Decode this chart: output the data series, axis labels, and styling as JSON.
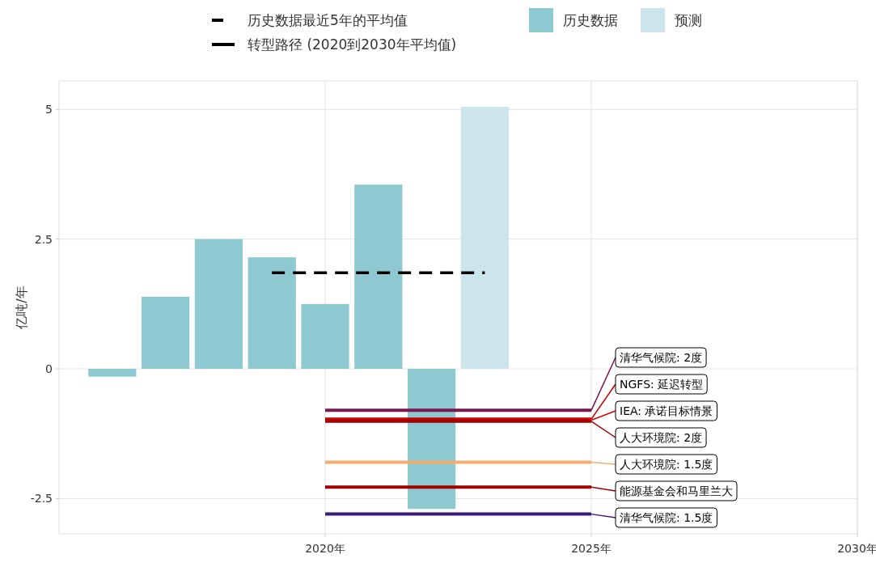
{
  "chart_data": {
    "type": "bar",
    "ylabel": "亿吨/年",
    "xlim": [
      2015,
      2030
    ],
    "ylim": [
      -3.18,
      5.55
    ],
    "xticks": [
      {
        "value": 2020,
        "label": "2020年"
      },
      {
        "value": 2025,
        "label": "2025年"
      },
      {
        "value": 2030,
        "label": "2030年"
      }
    ],
    "yticks": [
      {
        "value": -2.5,
        "label": "-2.5"
      },
      0,
      2.5,
      5
    ],
    "grid": true,
    "legend": "top",
    "annotations": [
      "转型路径 (2020到2030年平均值)"
    ],
    "series": [
      {
        "name": "历史数据",
        "color": "#8ec8d0",
        "x": [
          2016,
          2017,
          2018,
          2019,
          2020,
          2021,
          2022
        ],
        "values": [
          -0.15,
          1.39,
          2.5,
          2.15,
          1.25,
          3.55,
          -2.7
        ]
      },
      {
        "name": "预测",
        "color": "#cce5ea",
        "x": [
          2023
        ],
        "values": [
          5.05
        ]
      },
      {
        "name": "历史数据最近5年的平均值",
        "type": "line",
        "line_style": "dashed",
        "color": "#000000",
        "x": [
          2019,
          2023
        ],
        "values": [
          1.85,
          1.85
        ]
      },
      {
        "name": "清华气候院: 2度",
        "type": "line",
        "color": "#7b1650",
        "x": [
          2020,
          2025
        ],
        "values": [
          -0.8,
          -0.8
        ]
      },
      {
        "name": "NGFS: 延迟转型",
        "type": "line",
        "color": "#c00000",
        "x": [
          2020,
          2025
        ],
        "values": [
          -0.97,
          -0.97
        ]
      },
      {
        "name": "IEA: 承诺目标情景",
        "type": "line",
        "color": "#d00000",
        "x": [
          2020,
          2025
        ],
        "values": [
          -0.99,
          -0.99
        ]
      },
      {
        "name": "人大环境院: 2度",
        "type": "line",
        "color": "#a00000",
        "x": [
          2020,
          2025
        ],
        "values": [
          -1.01,
          -1.01
        ]
      },
      {
        "name": "人大环境院: 1.5度",
        "type": "line",
        "color": "#f4ac6c",
        "x": [
          2020,
          2025
        ],
        "values": [
          -1.8,
          -1.8
        ]
      },
      {
        "name": "能源基金会和马里兰大",
        "type": "line",
        "color": "#a00000",
        "x": [
          2020,
          2025
        ],
        "values": [
          -2.28,
          -2.28
        ]
      },
      {
        "name": "清华气候院: 1.5度",
        "type": "line",
        "color": "#3b1a78",
        "x": [
          2020,
          2025
        ],
        "values": [
          -2.8,
          -2.8
        ]
      }
    ]
  }
}
